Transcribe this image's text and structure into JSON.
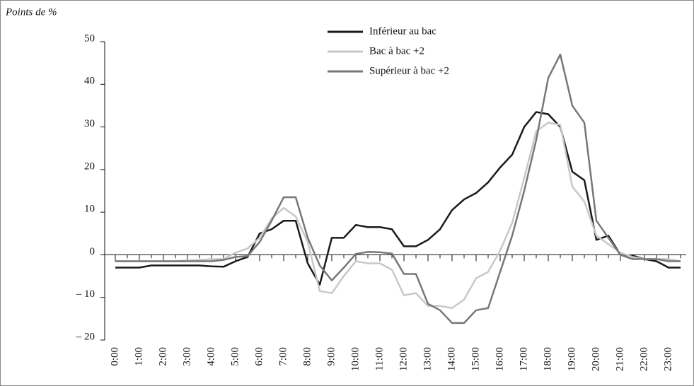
{
  "chart_data": {
    "type": "line",
    "y_label": "Points de %",
    "categories": [
      "0:00",
      null,
      "1:00",
      null,
      "2:00",
      null,
      "3:00",
      null,
      "4:00",
      null,
      "5:00",
      null,
      "6:00",
      null,
      "7:00",
      null,
      "8:00",
      null,
      "9:00",
      null,
      "10:00",
      null,
      "11:00",
      null,
      "12:00",
      null,
      "13:00",
      null,
      "14:00",
      null,
      "15:00",
      null,
      "16:00",
      null,
      "17:00",
      null,
      "18:00",
      null,
      "19:00",
      null,
      "20:00",
      null,
      "21:00",
      null,
      "22:00",
      null,
      "23:00",
      null
    ],
    "series": [
      {
        "name": "Inférieur au bac",
        "color": "#1a1a1a",
        "values": [
          -3,
          -3,
          -3,
          -2.5,
          -2.5,
          -2.5,
          -2.5,
          -2.5,
          -2.7,
          -2.8,
          -1.5,
          -0.5,
          5,
          6,
          8,
          8,
          -2,
          -7,
          4,
          4,
          7,
          6.5,
          6.5,
          6,
          2,
          2,
          3.5,
          6,
          10.5,
          13,
          14.5,
          17,
          20.5,
          23.5,
          30,
          33.5,
          33,
          30,
          19.5,
          17.5,
          3.5,
          4.5,
          0,
          -0.2,
          -1,
          -1.5,
          -3,
          -3
        ]
      },
      {
        "name": "Bac à bac +2",
        "color": "#c8c8c8",
        "values": [
          -1.5,
          -1.5,
          -1.5,
          -1.5,
          -1.5,
          -1.5,
          -1.3,
          -1.2,
          -1,
          -1,
          0.5,
          1.5,
          4,
          8.5,
          11,
          9,
          3,
          -8.5,
          -9,
          -5,
          -1.5,
          -2,
          -2,
          -3.5,
          -9.5,
          -9,
          -12,
          -12,
          -12.5,
          -10.5,
          -5.5,
          -4,
          1,
          7.5,
          18,
          29,
          31,
          30.5,
          16,
          12.5,
          4.5,
          2.5,
          0.5,
          -0.5,
          -1,
          -1,
          -1,
          -1.5
        ]
      },
      {
        "name": "Supérieur à bac +2",
        "color": "#777777",
        "values": [
          -1.5,
          -1.5,
          -1.5,
          -1.5,
          -1.5,
          -1.5,
          -1.5,
          -1.5,
          -1.5,
          -1.2,
          -0.5,
          -0.3,
          3,
          8,
          13.5,
          13.5,
          4,
          -2.5,
          -6,
          -3,
          0.2,
          0.7,
          0.6,
          0.3,
          -4.5,
          -4.5,
          -11.5,
          -13,
          -16,
          -16,
          -13,
          -12.5,
          -4,
          4.5,
          15,
          27,
          41.5,
          47,
          35,
          31,
          8,
          4,
          0,
          -1,
          -1,
          -1,
          -1.5,
          -1.5
        ]
      }
    ],
    "ylim": [
      -20,
      50
    ],
    "yticks": [
      {
        "value": -20,
        "label": "– 20"
      },
      {
        "value": -10,
        "label": "– 10"
      },
      0,
      10,
      20,
      30,
      40,
      50
    ]
  }
}
